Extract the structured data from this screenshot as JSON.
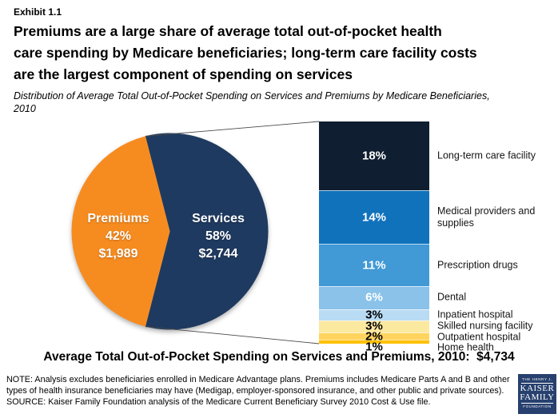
{
  "header": {
    "exhibit": "Exhibit 1.1",
    "title_lines": [
      "Premiums are a large share of average total out-of-pocket health",
      "care spending by Medicare beneficiaries; long-term care facility costs",
      "are the largest component of spending on services"
    ],
    "subtitle_lines": [
      "Distribution of Average Total Out-of-Pocket Spending on Services and Premiums by Medicare Beneficiaries,",
      "2010"
    ]
  },
  "chart_data": {
    "type": "pie",
    "title": "Distribution of Average Total Out-of-Pocket Spending on Services and Premiums by Medicare Beneficiaries, 2010",
    "pie": {
      "slices": [
        {
          "label": "Premiums",
          "percent": 42,
          "amount": "$1,989",
          "color": "#F68C20"
        },
        {
          "label": "Services",
          "percent": 58,
          "amount": "$2,744",
          "color": "#1F3A60"
        }
      ]
    },
    "bar": {
      "note": "breakdown of Services slice, stacked bar, percents of total spending",
      "segments": [
        {
          "label": "Long-term care facility",
          "percent": 18,
          "color": "#0F1E30",
          "text_color": "#FFFFFF"
        },
        {
          "label": "Medical providers and supplies",
          "percent": 14,
          "color": "#1172BC",
          "text_color": "#FFFFFF"
        },
        {
          "label": "Prescription drugs",
          "percent": 11,
          "color": "#4199D6",
          "text_color": "#FFFFFF"
        },
        {
          "label": "Dental",
          "percent": 6,
          "color": "#8AC2EA",
          "text_color": "#FFFFFF"
        },
        {
          "label": "Inpatient hospital",
          "percent": 3,
          "color": "#B9DCF4",
          "text_color": "#000000"
        },
        {
          "label": "Skilled nursing facility",
          "percent": 3,
          "color": "#FCE9A0",
          "text_color": "#000000"
        },
        {
          "label": "Outpatient hospital",
          "percent": 2,
          "color": "#FFD45E",
          "text_color": "#000000"
        },
        {
          "label": "Home health",
          "percent": 1,
          "color": "#FFC000",
          "text_color": "#000000"
        }
      ]
    },
    "total_line": "Average Total Out-of-Pocket Spending on Services and Premiums, 2010:  $4,734"
  },
  "footer": {
    "note_line1": "NOTE: Analysis excludes beneficiaries enrolled in Medicare Advantage plans. Premiums includes Medicare Parts A and B and other",
    "note_line2": "types of health insurance beneficiaries may have (Medigap, employer-sponsored insurance, and other public and private sources).",
    "source": "SOURCE: Kaiser Family Foundation analysis of the Medicare Current Beneficiary Survey 2010 Cost & Use file.",
    "logo": {
      "line1": "THE HENRY J.",
      "line2": "KAISER",
      "line3": "FAMILY",
      "line4": "FOUNDATION",
      "color": "#27406E"
    }
  }
}
